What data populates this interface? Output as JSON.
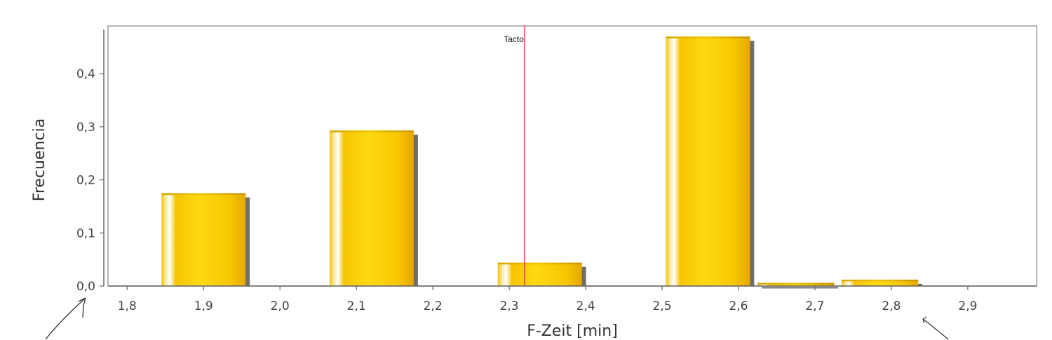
{
  "chart_data": {
    "type": "bar",
    "title": "",
    "xlabel": "F-Zeit [min]",
    "ylabel": "Frecuencia",
    "x_ticks": [
      "1,8",
      "1,9",
      "2,0",
      "2,1",
      "2,2",
      "2,3",
      "2,4",
      "2,5",
      "2,6",
      "2,7",
      "2,8",
      "2,9"
    ],
    "x_tick_values": [
      1.8,
      1.9,
      2.0,
      2.1,
      2.2,
      2.3,
      2.4,
      2.5,
      2.6,
      2.7,
      2.8,
      2.9
    ],
    "y_ticks": [
      "0,0",
      "0,1",
      "0,2",
      "0,3",
      "0,4"
    ],
    "y_tick_values": [
      0,
      0.1,
      0.2,
      0.3,
      0.4
    ],
    "xlim": [
      1.775,
      2.99
    ],
    "ylim": [
      0,
      0.49
    ],
    "bars": [
      {
        "x_start": 1.845,
        "x_end": 1.955,
        "value": 0.175
      },
      {
        "x_start": 2.065,
        "x_end": 2.175,
        "value": 0.293
      },
      {
        "x_start": 2.285,
        "x_end": 2.395,
        "value": 0.044
      },
      {
        "x_start": 2.505,
        "x_end": 2.615,
        "value": 0.47
      },
      {
        "x_start": 2.625,
        "x_end": 2.725,
        "value": 0.006
      },
      {
        "x_start": 2.735,
        "x_end": 2.835,
        "value": 0.012
      }
    ],
    "reference_line": {
      "x": 2.32,
      "label": "Tacto",
      "color": "#e02020"
    },
    "bar_color": "#f2c200",
    "grid": false,
    "legend": "none"
  }
}
